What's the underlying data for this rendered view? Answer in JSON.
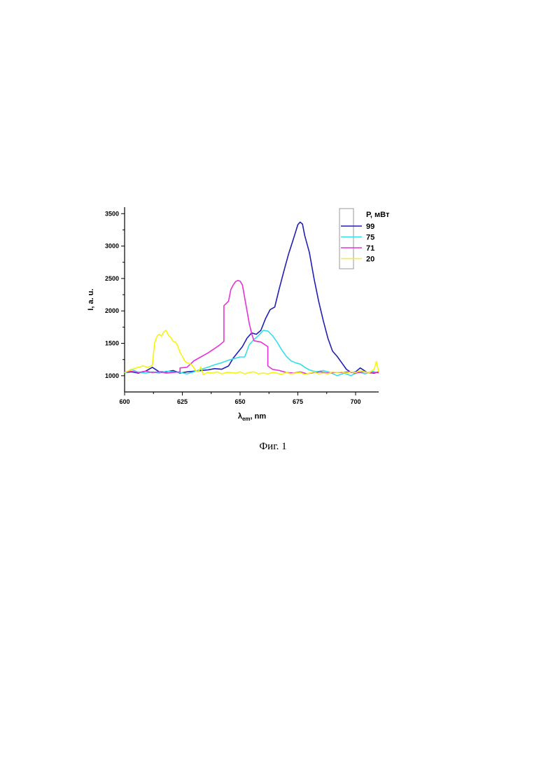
{
  "chart_data": {
    "type": "line",
    "xlabel": "λ",
    "xlabel_sub": "em",
    "xlabel_suffix": ", nm",
    "ylabel": "I, a. u.",
    "xlim": [
      600,
      710
    ],
    "ylim": [
      750,
      3600
    ],
    "xticks": [
      600,
      625,
      650,
      675,
      700
    ],
    "yticks": [
      1000,
      1500,
      2000,
      2500,
      3000,
      3500
    ],
    "grid": false,
    "legend_title": "P,  мВт",
    "legend_position": "top-right",
    "series": [
      {
        "name": "99",
        "color": "#1f1fb4",
        "points": [
          [
            600,
            1050
          ],
          [
            603,
            1060
          ],
          [
            606,
            1040
          ],
          [
            609,
            1070
          ],
          [
            612,
            1130
          ],
          [
            615,
            1060
          ],
          [
            618,
            1060
          ],
          [
            621,
            1080
          ],
          [
            624,
            1040
          ],
          [
            627,
            1060
          ],
          [
            630,
            1070
          ],
          [
            633,
            1080
          ],
          [
            636,
            1090
          ],
          [
            639,
            1110
          ],
          [
            642,
            1100
          ],
          [
            645,
            1150
          ],
          [
            647,
            1270
          ],
          [
            649,
            1360
          ],
          [
            651,
            1450
          ],
          [
            653,
            1580
          ],
          [
            655,
            1660
          ],
          [
            657,
            1640
          ],
          [
            659,
            1700
          ],
          [
            661,
            1880
          ],
          [
            663,
            2020
          ],
          [
            665,
            2060
          ],
          [
            667,
            2350
          ],
          [
            669,
            2620
          ],
          [
            671,
            2880
          ],
          [
            673,
            3100
          ],
          [
            675,
            3330
          ],
          [
            676,
            3370
          ],
          [
            677,
            3340
          ],
          [
            678,
            3160
          ],
          [
            680,
            2900
          ],
          [
            682,
            2500
          ],
          [
            684,
            2150
          ],
          [
            686,
            1850
          ],
          [
            688,
            1580
          ],
          [
            690,
            1380
          ],
          [
            692,
            1300
          ],
          [
            694,
            1200
          ],
          [
            696,
            1100
          ],
          [
            698,
            1050
          ],
          [
            700,
            1060
          ],
          [
            702,
            1120
          ],
          [
            705,
            1050
          ],
          [
            708,
            1040
          ],
          [
            710,
            1060
          ]
        ]
      },
      {
        "name": "75",
        "color": "#33e0e8",
        "points": [
          [
            600,
            1040
          ],
          [
            603,
            1100
          ],
          [
            606,
            1050
          ],
          [
            609,
            1040
          ],
          [
            612,
            1060
          ],
          [
            615,
            1040
          ],
          [
            618,
            1070
          ],
          [
            621,
            1060
          ],
          [
            624,
            1050
          ],
          [
            627,
            1030
          ],
          [
            630,
            1060
          ],
          [
            633,
            1100
          ],
          [
            636,
            1130
          ],
          [
            639,
            1170
          ],
          [
            642,
            1200
          ],
          [
            645,
            1240
          ],
          [
            648,
            1270
          ],
          [
            650,
            1290
          ],
          [
            652,
            1290
          ],
          [
            654,
            1480
          ],
          [
            656,
            1560
          ],
          [
            658,
            1620
          ],
          [
            660,
            1700
          ],
          [
            662,
            1690
          ],
          [
            664,
            1620
          ],
          [
            666,
            1520
          ],
          [
            668,
            1400
          ],
          [
            670,
            1300
          ],
          [
            672,
            1230
          ],
          [
            674,
            1200
          ],
          [
            676,
            1180
          ],
          [
            678,
            1130
          ],
          [
            680,
            1090
          ],
          [
            683,
            1060
          ],
          [
            686,
            1080
          ],
          [
            689,
            1050
          ],
          [
            692,
            1000
          ],
          [
            695,
            1040
          ],
          [
            698,
            1000
          ],
          [
            701,
            1060
          ],
          [
            704,
            1030
          ],
          [
            707,
            1070
          ],
          [
            710,
            1040
          ]
        ]
      },
      {
        "name": "71",
        "color": "#e633d6",
        "points": [
          [
            600,
            1060
          ],
          [
            603,
            1070
          ],
          [
            606,
            1050
          ],
          [
            609,
            1070
          ],
          [
            612,
            1050
          ],
          [
            615,
            1060
          ],
          [
            618,
            1040
          ],
          [
            621,
            1050
          ],
          [
            624,
            1060
          ],
          [
            624,
            1120
          ],
          [
            627,
            1130
          ],
          [
            630,
            1230
          ],
          [
            633,
            1290
          ],
          [
            636,
            1350
          ],
          [
            639,
            1420
          ],
          [
            641,
            1470
          ],
          [
            643,
            1530
          ],
          [
            643,
            2080
          ],
          [
            645,
            2150
          ],
          [
            646,
            2330
          ],
          [
            647,
            2400
          ],
          [
            648,
            2450
          ],
          [
            649,
            2470
          ],
          [
            650,
            2460
          ],
          [
            651,
            2400
          ],
          [
            652,
            2200
          ],
          [
            653,
            2000
          ],
          [
            654,
            1800
          ],
          [
            655,
            1650
          ],
          [
            656,
            1540
          ],
          [
            659,
            1520
          ],
          [
            662,
            1450
          ],
          [
            662,
            1150
          ],
          [
            664,
            1100
          ],
          [
            667,
            1080
          ],
          [
            670,
            1050
          ],
          [
            673,
            1040
          ],
          [
            676,
            1060
          ],
          [
            679,
            1030
          ],
          [
            682,
            1050
          ],
          [
            685,
            1060
          ],
          [
            688,
            1040
          ],
          [
            691,
            1050
          ],
          [
            694,
            1050
          ],
          [
            697,
            1060
          ],
          [
            700,
            1040
          ],
          [
            703,
            1060
          ],
          [
            706,
            1050
          ],
          [
            710,
            1050
          ]
        ]
      },
      {
        "name": "20",
        "color": "#f5f50f",
        "points": [
          [
            600,
            1050
          ],
          [
            602,
            1080
          ],
          [
            604,
            1110
          ],
          [
            606,
            1130
          ],
          [
            608,
            1150
          ],
          [
            610,
            1130
          ],
          [
            612,
            1160
          ],
          [
            613,
            1510
          ],
          [
            614,
            1610
          ],
          [
            615,
            1640
          ],
          [
            616,
            1610
          ],
          [
            617,
            1680
          ],
          [
            618,
            1700
          ],
          [
            619,
            1620
          ],
          [
            620,
            1590
          ],
          [
            621,
            1530
          ],
          [
            622,
            1520
          ],
          [
            623,
            1460
          ],
          [
            624,
            1360
          ],
          [
            625,
            1300
          ],
          [
            626,
            1230
          ],
          [
            627,
            1200
          ],
          [
            628,
            1190
          ],
          [
            629,
            1170
          ],
          [
            631,
            1070
          ],
          [
            632,
            1060
          ],
          [
            633,
            1140
          ],
          [
            634,
            1020
          ],
          [
            636,
            1050
          ],
          [
            638,
            1040
          ],
          [
            640,
            1060
          ],
          [
            642,
            1030
          ],
          [
            644,
            1050
          ],
          [
            646,
            1050
          ],
          [
            648,
            1040
          ],
          [
            650,
            1060
          ],
          [
            652,
            1030
          ],
          [
            654,
            1050
          ],
          [
            656,
            1060
          ],
          [
            658,
            1030
          ],
          [
            660,
            1040
          ],
          [
            662,
            1030
          ],
          [
            664,
            1050
          ],
          [
            666,
            1040
          ],
          [
            668,
            1020
          ],
          [
            670,
            1050
          ],
          [
            672,
            1030
          ],
          [
            674,
            1040
          ],
          [
            676,
            1050
          ],
          [
            678,
            1020
          ],
          [
            680,
            1040
          ],
          [
            682,
            1060
          ],
          [
            684,
            1030
          ],
          [
            686,
            1040
          ],
          [
            688,
            1030
          ],
          [
            690,
            1060
          ],
          [
            692,
            1050
          ],
          [
            694,
            1060
          ],
          [
            696,
            1040
          ],
          [
            698,
            1060
          ],
          [
            700,
            1050
          ],
          [
            702,
            1080
          ],
          [
            704,
            1060
          ],
          [
            706,
            1050
          ],
          [
            708,
            1100
          ],
          [
            709,
            1220
          ],
          [
            710,
            1060
          ]
        ]
      }
    ]
  },
  "caption": "Фиг. 1"
}
